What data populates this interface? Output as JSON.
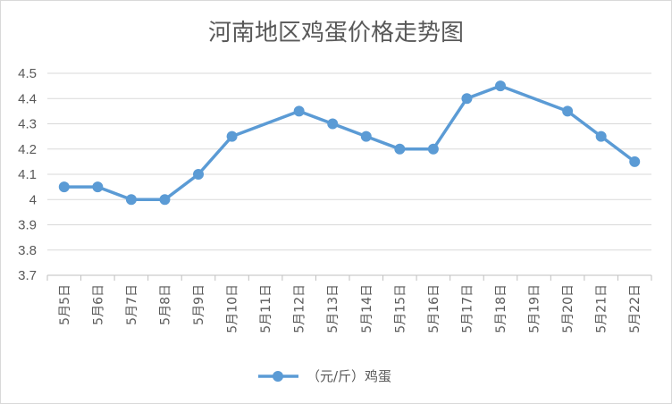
{
  "chart_data": {
    "type": "line",
    "title": "河南地区鸡蛋价格走势图",
    "categories": [
      "5月5日",
      "5月6日",
      "5月7日",
      "5月8日",
      "5月9日",
      "5月10日",
      "5月11日",
      "5月12日",
      "5月13日",
      "5月14日",
      "5月15日",
      "5月16日",
      "5月17日",
      "5月18日",
      "5月19日",
      "5月20日",
      "5月21日",
      "5月22日"
    ],
    "series": [
      {
        "name": "（元/斤）鸡蛋",
        "color": "#5b9bd5",
        "values": [
          4.05,
          4.05,
          4.0,
          4.0,
          4.1,
          4.25,
          null,
          4.35,
          4.3,
          4.25,
          4.2,
          4.2,
          4.4,
          4.45,
          null,
          4.35,
          4.25,
          4.15
        ]
      }
    ],
    "ylim": [
      3.7,
      4.5
    ],
    "yticks": [
      "3.7",
      "3.8",
      "3.9",
      "4",
      "4.1",
      "4.2",
      "4.3",
      "4.4",
      "4.5"
    ],
    "xlabel": "",
    "ylabel": "",
    "grid": true,
    "legend_position": "bottom"
  }
}
